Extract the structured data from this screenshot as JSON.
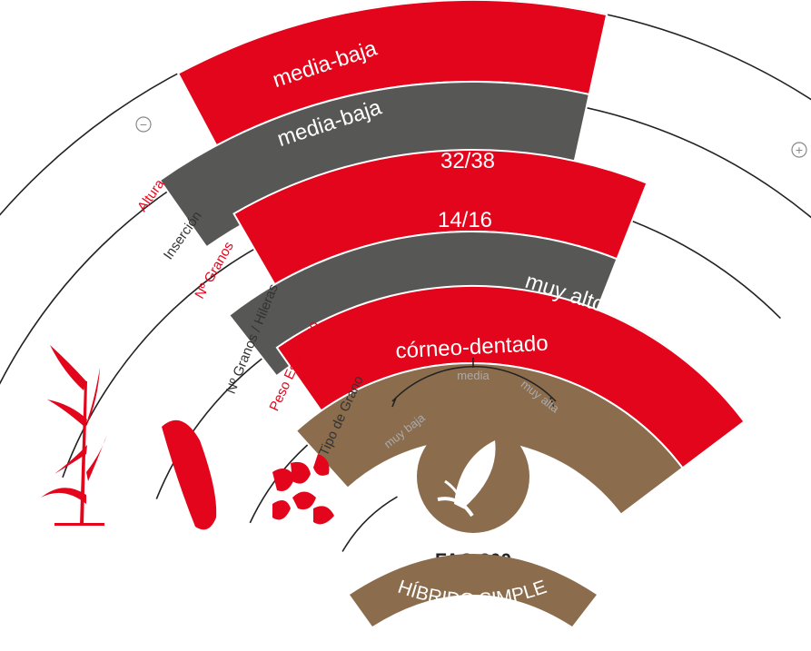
{
  "colors": {
    "red": "#e3051b",
    "dark": "#575756",
    "brown": "#8b6d4e",
    "line": "#222222",
    "scale": "#aaaaaa"
  },
  "symbols": {
    "minus": "−",
    "plus": "+"
  },
  "rows": [
    {
      "axis_label": "Altura",
      "value": "media-baja",
      "color": "red",
      "level": 0.42
    },
    {
      "axis_label": "Inserción",
      "value": "media-baja",
      "color": "dark",
      "level": 0.42
    },
    {
      "axis_label": "Nº Granos",
      "value": "32/38",
      "color": "red",
      "level": 0.55
    },
    {
      "axis_label": "Nº Granos / Hileras",
      "value": "14/16",
      "color": "dark",
      "level": 0.55
    },
    {
      "axis_label": "Peso Específico",
      "value": "muy alto",
      "color": "red",
      "level": 1.0
    },
    {
      "axis_label": "Tipo de Grano",
      "value": "córneo-dentado",
      "color": "brown",
      "level": 1.0
    }
  ],
  "scale_labels": [
    "muy baja",
    "media",
    "muy alta"
  ],
  "icons": [
    "corn-plant-icon",
    "corn-ear-icon",
    "corn-kernels-icon",
    "corn-cob-badge-icon"
  ],
  "product": {
    "fao": "FAO 300",
    "type": "HÍBRIDO SIMPLE"
  }
}
